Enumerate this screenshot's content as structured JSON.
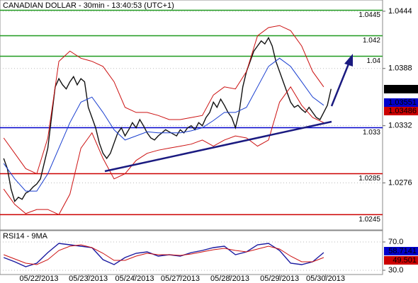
{
  "chart_data": [
    {
      "type": "line",
      "title": "CANADIAN DOLLAR - 30min - 13:40:53 (UTC+1)",
      "xlim": [
        -1,
        103
      ],
      "xticks": [
        {
          "value": 9.6,
          "label": "05/22/2013"
        },
        {
          "value": 23,
          "label": "05/23/2013"
        },
        {
          "value": 35.6,
          "label": "05/24/2013"
        },
        {
          "value": 48,
          "label": "05/27/2013"
        },
        {
          "value": 61.5,
          "label": "05/28/2013"
        },
        {
          "value": 75,
          "label": "05/29/2013"
        },
        {
          "value": 87.5,
          "label": "05/30/2013"
        }
      ],
      "ylim": [
        1.023,
        1.0455
      ],
      "yticks": [
        1.0444,
        1.0388,
        1.0332,
        1.0276
      ],
      "grid": true,
      "series": [
        {
          "color": "#111111",
          "x": [
            0,
            1,
            2,
            3,
            4,
            5,
            6,
            7,
            8,
            9,
            10,
            11,
            12,
            13,
            14,
            15,
            16,
            17,
            18,
            19,
            20,
            21,
            22,
            23,
            24,
            25,
            26,
            27,
            28,
            29,
            30,
            31,
            32,
            33,
            34,
            35,
            36,
            37,
            38,
            39,
            40,
            41,
            42,
            43,
            44,
            45,
            46,
            47,
            48,
            49,
            50,
            51,
            52,
            53,
            54,
            55,
            56,
            57,
            58,
            59,
            60,
            61,
            62,
            63,
            64,
            65,
            66,
            67,
            68,
            69,
            70,
            71,
            72,
            73,
            74,
            75,
            76,
            77,
            78,
            79,
            80,
            81,
            82,
            83,
            84,
            85,
            86,
            87,
            88,
            89
          ],
          "values": [
            1.03,
            1.029,
            1.027,
            1.0258,
            1.0262,
            1.026,
            1.0266,
            1.0268,
            1.0272,
            1.0275,
            1.028,
            1.0295,
            1.031,
            1.034,
            1.037,
            1.0378,
            1.0372,
            1.0368,
            1.0375,
            1.038,
            1.0372,
            1.0378,
            1.0375,
            1.035,
            1.034,
            1.033,
            1.0315,
            1.0305,
            1.03,
            1.0305,
            1.0315,
            1.0325,
            1.033,
            1.0322,
            1.0328,
            1.0335,
            1.033,
            1.0338,
            1.0332,
            1.0325,
            1.032,
            1.0318,
            1.0322,
            1.0325,
            1.0328,
            1.0326,
            1.0324,
            1.0322,
            1.0328,
            1.0325,
            1.033,
            1.0332,
            1.0328,
            1.0335,
            1.0332,
            1.034,
            1.0345,
            1.0355,
            1.035,
            1.0358,
            1.0352,
            1.0345,
            1.034,
            1.033,
            1.0345,
            1.037,
            1.0385,
            1.0395,
            1.0405,
            1.041,
            1.0415,
            1.0412,
            1.0418,
            1.041,
            1.0395,
            1.0385,
            1.0375,
            1.0365,
            1.0355,
            1.035,
            1.0352,
            1.0348,
            1.0345,
            1.035,
            1.0345,
            1.034,
            1.0338,
            1.0345,
            1.0352,
            1.0368
          ]
        },
        {
          "color": "#1a3fd0",
          "x": [
            0,
            3,
            6,
            9,
            12,
            15,
            18,
            21,
            24,
            27,
            30,
            33,
            36,
            39,
            42,
            45,
            48,
            51,
            54,
            57,
            60,
            63,
            66,
            69,
            72,
            75,
            78,
            81,
            84,
            87
          ],
          "values": [
            1.0295,
            1.028,
            1.0268,
            1.0268,
            1.0285,
            1.031,
            1.0335,
            1.0355,
            1.036,
            1.0345,
            1.0328,
            1.0318,
            1.0322,
            1.0326,
            1.0325,
            1.0325,
            1.0325,
            1.0327,
            1.033,
            1.0337,
            1.0345,
            1.0345,
            1.035,
            1.037,
            1.039,
            1.0398,
            1.039,
            1.0375,
            1.036,
            1.0352
          ]
        },
        {
          "color": "#cc1111",
          "x": [
            0,
            3,
            6,
            9,
            12,
            15,
            18,
            21,
            24,
            27,
            30,
            33,
            36,
            39,
            42,
            45,
            48,
            51,
            54,
            57,
            60,
            63,
            66,
            69,
            72,
            75,
            78,
            81,
            84,
            87
          ],
          "values": [
            1.032,
            1.0305,
            1.029,
            1.0285,
            1.032,
            1.0395,
            1.0405,
            1.0398,
            1.0395,
            1.039,
            1.0375,
            1.035,
            1.0345,
            1.0345,
            1.0342,
            1.0338,
            1.0338,
            1.034,
            1.0342,
            1.0362,
            1.037,
            1.0368,
            1.0385,
            1.042,
            1.0428,
            1.043,
            1.0425,
            1.041,
            1.0385,
            1.037
          ]
        },
        {
          "color": "#cc1111",
          "x": [
            0,
            3,
            6,
            9,
            12,
            15,
            18,
            21,
            24,
            27,
            30,
            33,
            36,
            39,
            42,
            45,
            48,
            51,
            54,
            57,
            60,
            63,
            66,
            69,
            72,
            75,
            78,
            81,
            84,
            87
          ],
          "values": [
            1.027,
            1.0255,
            1.0246,
            1.025,
            1.025,
            1.0245,
            1.0265,
            1.031,
            1.0325,
            1.03,
            1.028,
            1.0285,
            1.0298,
            1.0305,
            1.0308,
            1.031,
            1.0312,
            1.0314,
            1.0318,
            1.0312,
            1.0318,
            1.0322,
            1.032,
            1.0312,
            1.0318,
            1.0355,
            1.037,
            1.0352,
            1.034,
            1.0335
          ]
        }
      ],
      "levels": [
        {
          "value": 1.0445,
          "color": "#1f9a1f"
        },
        {
          "value": 1.042,
          "color": "#1f9a1f"
        },
        {
          "value": 1.04,
          "color": "#1f9a1f"
        },
        {
          "value": 1.033,
          "color": "#0000cc"
        },
        {
          "value": 1.0285,
          "color": "#cc0000"
        },
        {
          "value": 1.0245,
          "color": "#cc0000"
        }
      ],
      "last_values": [
        {
          "value": 1.0368,
          "color": "#000000"
        },
        {
          "value": 1.03551,
          "color": "#0000cc"
        },
        {
          "value": 1.03486,
          "color": "#cc0000"
        }
      ]
    },
    {
      "type": "line",
      "title": "RSI14 - 9MA",
      "xlim": [
        -1,
        103
      ],
      "ylim": [
        24,
        86
      ],
      "yticks": [
        {
          "value": 70,
          "label": "70.0"
        },
        {
          "value": 30,
          "label": "30.0"
        }
      ],
      "series": [
        {
          "color": "#1a1aa0",
          "x": [
            0,
            3,
            6,
            9,
            12,
            15,
            18,
            21,
            24,
            27,
            30,
            33,
            36,
            39,
            42,
            45,
            48,
            51,
            54,
            57,
            60,
            63,
            66,
            69,
            72,
            75,
            78,
            81,
            84,
            87
          ],
          "values": [
            48,
            42,
            35,
            40,
            55,
            68,
            66,
            64,
            62,
            45,
            38,
            48,
            54,
            56,
            50,
            52,
            50,
            55,
            58,
            62,
            64,
            52,
            56,
            66,
            68,
            58,
            40,
            38,
            42,
            55
          ]
        },
        {
          "color": "#cc1111",
          "x": [
            0,
            3,
            6,
            9,
            12,
            15,
            18,
            21,
            24,
            27,
            30,
            33,
            36,
            39,
            42,
            45,
            48,
            51,
            54,
            57,
            60,
            63,
            66,
            69,
            72,
            75,
            78,
            81,
            84,
            87
          ],
          "values": [
            52,
            46,
            40,
            38,
            45,
            58,
            64,
            66,
            62,
            54,
            44,
            44,
            50,
            54,
            52,
            52,
            51,
            53,
            56,
            59,
            61,
            58,
            56,
            60,
            64,
            60,
            50,
            42,
            42,
            48
          ]
        }
      ],
      "last_values": [
        {
          "value": 58.7141,
          "color": "#0000cc"
        },
        {
          "value": 49.501,
          "color": "#cc0000"
        }
      ]
    }
  ]
}
